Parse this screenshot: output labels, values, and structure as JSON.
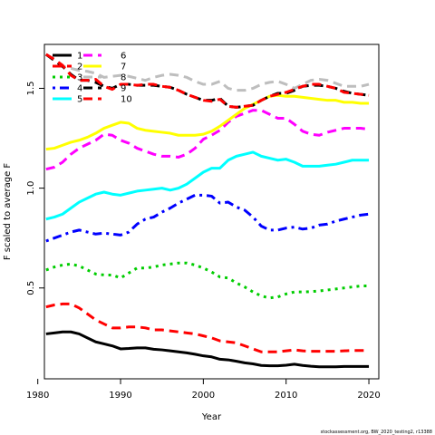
{
  "chart_data": {
    "type": "line",
    "title": "",
    "xlabel": "Year",
    "ylabel": "F scaled to average F",
    "xlim": [
      1980.8,
      2021.2
    ],
    "ylim": [
      0.045,
      1.72
    ],
    "x_ticks": [
      1980,
      1990,
      2000,
      2010,
      2020
    ],
    "y_ticks": [
      0.5,
      1.0,
      1.5
    ],
    "grid": false,
    "legend_position": "top-left",
    "footnote": "stockassessment.org, BW_2020_testing2, r13388",
    "x": [
      1981,
      1982,
      1983,
      1984,
      1985,
      1986,
      1987,
      1988,
      1989,
      1990,
      1991,
      1992,
      1993,
      1994,
      1995,
      1996,
      1997,
      1998,
      1999,
      2000,
      2001,
      2002,
      2003,
      2004,
      2005,
      2006,
      2007,
      2008,
      2009,
      2010,
      2011,
      2012,
      2013,
      2014,
      2015,
      2016,
      2017,
      2018,
      2019,
      2020
    ],
    "series": [
      {
        "name": "1",
        "color": "#000000",
        "dash": "solid",
        "values": [
          0.27,
          0.275,
          0.28,
          0.28,
          0.27,
          0.25,
          0.23,
          0.22,
          0.21,
          0.195,
          0.197,
          0.2,
          0.2,
          0.193,
          0.19,
          0.185,
          0.18,
          0.175,
          0.168,
          0.16,
          0.155,
          0.143,
          0.14,
          0.133,
          0.125,
          0.12,
          0.112,
          0.11,
          0.11,
          0.113,
          0.118,
          0.112,
          0.108,
          0.105,
          0.105,
          0.105,
          0.107,
          0.107,
          0.107,
          0.107
        ]
      },
      {
        "name": "2",
        "color": "#ff0000",
        "dash": "dashed",
        "values": [
          0.405,
          0.415,
          0.42,
          0.42,
          0.4,
          0.37,
          0.34,
          0.32,
          0.3,
          0.3,
          0.305,
          0.305,
          0.3,
          0.29,
          0.29,
          0.285,
          0.28,
          0.275,
          0.27,
          0.26,
          0.25,
          0.235,
          0.23,
          0.225,
          0.21,
          0.195,
          0.18,
          0.18,
          0.18,
          0.185,
          0.19,
          0.185,
          0.183,
          0.183,
          0.183,
          0.183,
          0.185,
          0.187,
          0.187,
          0.187
        ]
      },
      {
        "name": "3",
        "color": "#00cd00",
        "dash": "dotted",
        "values": [
          0.59,
          0.605,
          0.615,
          0.62,
          0.61,
          0.59,
          0.57,
          0.565,
          0.565,
          0.55,
          0.575,
          0.6,
          0.6,
          0.605,
          0.615,
          0.62,
          0.625,
          0.625,
          0.615,
          0.6,
          0.58,
          0.555,
          0.55,
          0.525,
          0.505,
          0.48,
          0.46,
          0.45,
          0.455,
          0.47,
          0.48,
          0.48,
          0.482,
          0.485,
          0.49,
          0.495,
          0.5,
          0.505,
          0.51,
          0.51
        ]
      },
      {
        "name": "4",
        "color": "#0000ff",
        "dash": "dotdash",
        "values": [
          0.735,
          0.75,
          0.765,
          0.78,
          0.79,
          0.78,
          0.77,
          0.775,
          0.77,
          0.765,
          0.78,
          0.82,
          0.845,
          0.855,
          0.88,
          0.9,
          0.925,
          0.945,
          0.965,
          0.965,
          0.96,
          0.925,
          0.93,
          0.905,
          0.89,
          0.855,
          0.81,
          0.79,
          0.79,
          0.8,
          0.805,
          0.795,
          0.8,
          0.815,
          0.82,
          0.835,
          0.845,
          0.855,
          0.865,
          0.87
        ]
      },
      {
        "name": "5",
        "color": "#00ffff",
        "dash": "solid",
        "values": [
          0.845,
          0.855,
          0.87,
          0.9,
          0.93,
          0.95,
          0.97,
          0.98,
          0.97,
          0.965,
          0.975,
          0.985,
          0.99,
          0.995,
          1.0,
          0.99,
          1.0,
          1.02,
          1.05,
          1.08,
          1.1,
          1.1,
          1.14,
          1.16,
          1.17,
          1.18,
          1.16,
          1.15,
          1.14,
          1.145,
          1.13,
          1.11,
          1.11,
          1.11,
          1.115,
          1.12,
          1.13,
          1.14,
          1.14,
          1.14
        ]
      },
      {
        "name": "6",
        "color": "#ff00ff",
        "dash": "dashed",
        "values": [
          1.095,
          1.105,
          1.13,
          1.17,
          1.2,
          1.22,
          1.24,
          1.27,
          1.265,
          1.24,
          1.225,
          1.2,
          1.185,
          1.17,
          1.16,
          1.16,
          1.155,
          1.17,
          1.2,
          1.245,
          1.265,
          1.29,
          1.33,
          1.36,
          1.375,
          1.39,
          1.39,
          1.37,
          1.35,
          1.35,
          1.32,
          1.285,
          1.27,
          1.265,
          1.28,
          1.29,
          1.3,
          1.3,
          1.3,
          1.295
        ]
      },
      {
        "name": "7",
        "color": "#ffff00",
        "dash": "solid",
        "values": [
          1.195,
          1.2,
          1.215,
          1.23,
          1.24,
          1.255,
          1.275,
          1.3,
          1.315,
          1.33,
          1.325,
          1.3,
          1.29,
          1.285,
          1.28,
          1.275,
          1.265,
          1.265,
          1.265,
          1.27,
          1.285,
          1.31,
          1.34,
          1.37,
          1.4,
          1.42,
          1.44,
          1.46,
          1.465,
          1.46,
          1.46,
          1.455,
          1.45,
          1.445,
          1.44,
          1.44,
          1.43,
          1.43,
          1.425,
          1.425
        ]
      },
      {
        "name": "8",
        "color": "#bebebe",
        "dash": "dashed",
        "values": [
          1.67,
          1.64,
          1.61,
          1.6,
          1.59,
          1.585,
          1.575,
          1.555,
          1.56,
          1.565,
          1.56,
          1.55,
          1.54,
          1.555,
          1.565,
          1.57,
          1.565,
          1.555,
          1.535,
          1.52,
          1.52,
          1.535,
          1.5,
          1.49,
          1.49,
          1.5,
          1.52,
          1.53,
          1.535,
          1.52,
          1.5,
          1.52,
          1.54,
          1.545,
          1.54,
          1.525,
          1.51,
          1.51,
          1.51,
          1.52
        ]
      },
      {
        "name": "9",
        "color": "#000000",
        "dash": "dashed",
        "values": [
          1.67,
          1.64,
          1.61,
          1.57,
          1.54,
          1.54,
          1.53,
          1.51,
          1.5,
          1.52,
          1.52,
          1.515,
          1.515,
          1.515,
          1.51,
          1.505,
          1.49,
          1.47,
          1.455,
          1.44,
          1.44,
          1.45,
          1.41,
          1.405,
          1.41,
          1.415,
          1.44,
          1.46,
          1.475,
          1.475,
          1.49,
          1.51,
          1.515,
          1.515,
          1.51,
          1.5,
          1.485,
          1.475,
          1.47,
          1.465
        ]
      },
      {
        "name": "10",
        "color": "#ff0000",
        "dash": "dashed",
        "values": [
          1.67,
          1.645,
          1.615,
          1.565,
          1.54,
          1.54,
          1.545,
          1.51,
          1.495,
          1.52,
          1.52,
          1.515,
          1.52,
          1.52,
          1.51,
          1.505,
          1.49,
          1.47,
          1.455,
          1.44,
          1.435,
          1.445,
          1.41,
          1.405,
          1.41,
          1.415,
          1.44,
          1.46,
          1.47,
          1.48,
          1.495,
          1.51,
          1.52,
          1.52,
          1.51,
          1.5,
          1.48,
          1.475,
          1.47,
          1.465
        ]
      }
    ]
  }
}
